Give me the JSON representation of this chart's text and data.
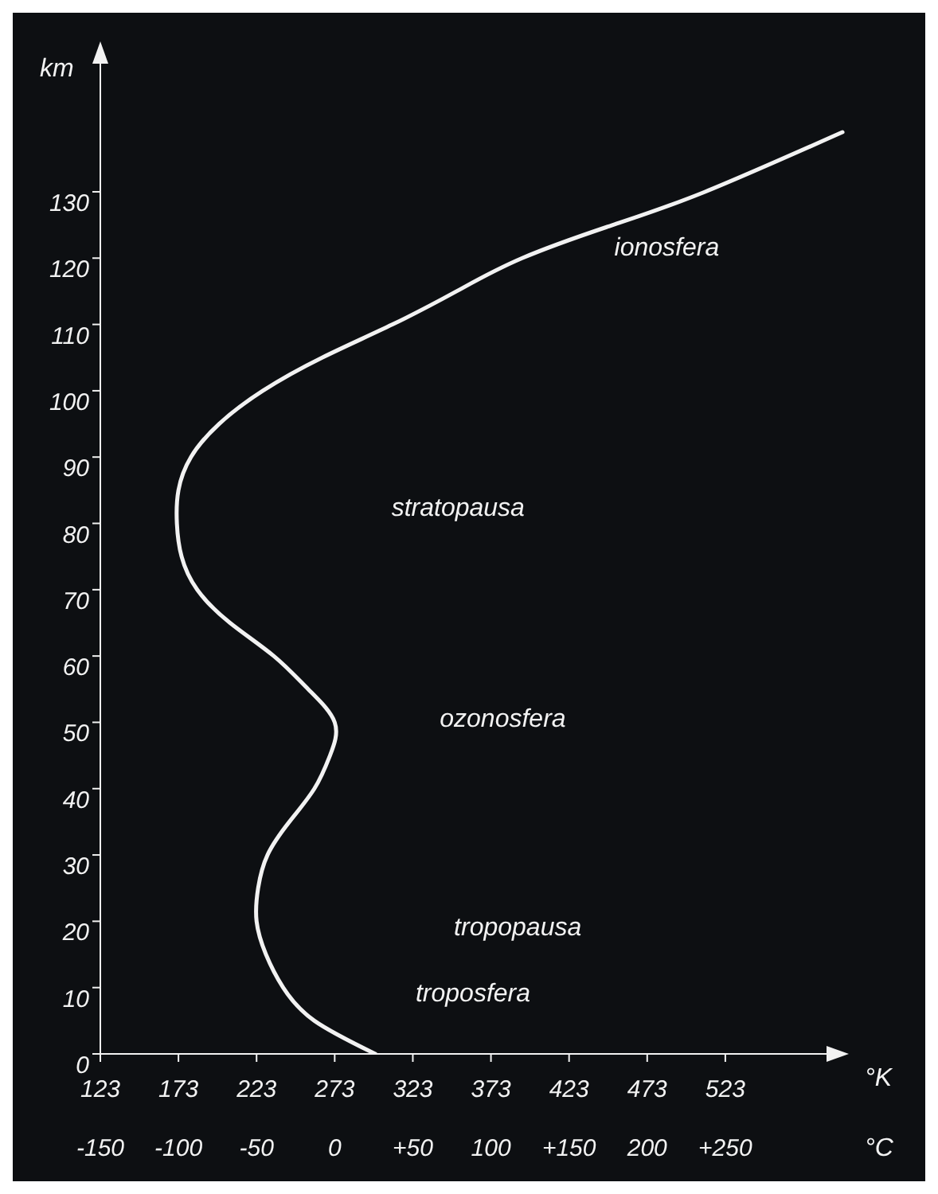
{
  "chart_data": {
    "type": "line",
    "xlabel": "°K",
    "x2label": "°C",
    "ylabel": "km",
    "x": [
      299,
      260,
      240,
      229,
      223,
      224,
      230,
      244,
      260,
      270,
      273,
      256,
      234,
      206,
      185,
      175,
      172,
      173,
      181,
      199,
      227,
      265,
      310,
      351,
      393,
      451,
      510,
      598
    ],
    "series": [
      {
        "color": "#f2f2f2",
        "values": [
          0,
          5,
          10,
          15,
          20,
          25,
          30,
          35,
          40,
          45,
          50,
          55,
          60,
          65,
          70,
          75,
          80,
          85,
          90,
          95,
          100,
          105,
          110,
          115,
          120,
          125,
          130,
          139
        ]
      }
    ],
    "xlim": [
      123,
      600
    ],
    "xticks": [
      123,
      173,
      223,
      273,
      323,
      373,
      423,
      473,
      523
    ],
    "x2lim": [
      -150,
      327
    ],
    "x2ticks": [
      -150,
      -100,
      -50,
      0,
      {
        "value": 50,
        "label": "+50"
      },
      100,
      {
        "value": 150,
        "label": "+150"
      },
      200,
      {
        "value": 250,
        "label": "+250"
      }
    ],
    "ylim": [
      0,
      145
    ],
    "yticks": [
      0,
      10,
      20,
      30,
      40,
      50,
      60,
      70,
      80,
      90,
      100,
      110,
      120,
      130
    ],
    "annotations": [
      "ionosfera",
      "stratopausa",
      "ozonosfera",
      "tropopausa",
      "troposfera"
    ],
    "grid": false,
    "legend": false,
    "marker": "none",
    "line_style": "solid"
  }
}
